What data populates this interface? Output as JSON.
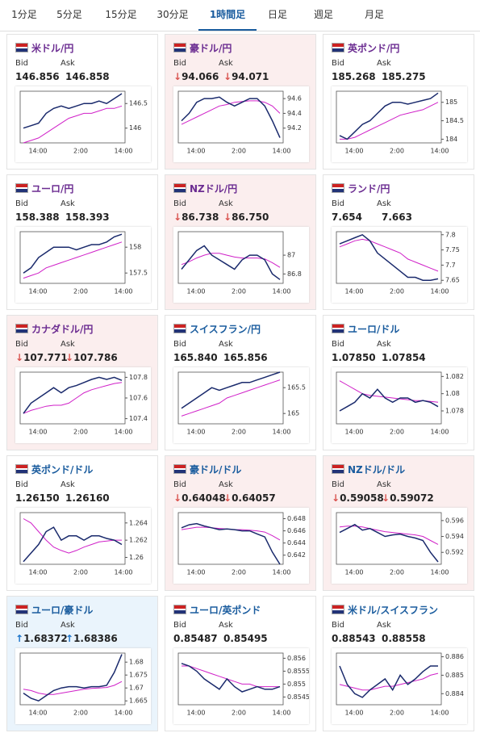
{
  "tabs": [
    "1分足",
    "5分足",
    "15分足",
    "30分足",
    "1時間足",
    "日足",
    "週足",
    "月足"
  ],
  "active_tab": 4,
  "bid_label": "Bid",
  "ask_label": "Ask",
  "x_labels": [
    "14:00",
    "2:00",
    "14:00"
  ],
  "panels": [
    {
      "title": "米ドル/円",
      "title_color": "#6b2c91",
      "bid": "146.856",
      "ask": "146.858",
      "chart": {
        "ylim": [
          145.7,
          146.75
        ],
        "yticks": [
          146,
          146.5
        ],
        "close": [
          146.0,
          146.05,
          146.1,
          146.3,
          146.4,
          146.45,
          146.4,
          146.45,
          146.5,
          146.5,
          146.55,
          146.5,
          146.6,
          146.7
        ],
        "ma": [
          145.7,
          145.75,
          145.8,
          145.9,
          146.0,
          146.1,
          146.2,
          146.25,
          146.3,
          146.3,
          146.35,
          146.4,
          146.4,
          146.45
        ]
      }
    },
    {
      "title": "豪ドル/円",
      "title_color": "#6b2c91",
      "state": "down",
      "trend_symbol": "↓",
      "bid": "94.066",
      "ask": "94.071",
      "chart": {
        "ylim": [
          94.0,
          94.7
        ],
        "yticks": [
          94.2,
          94.4,
          94.6
        ],
        "close": [
          94.3,
          94.4,
          94.55,
          94.6,
          94.6,
          94.62,
          94.55,
          94.5,
          94.55,
          94.6,
          94.6,
          94.5,
          94.3,
          94.07
        ],
        "ma": [
          94.25,
          94.3,
          94.35,
          94.4,
          94.45,
          94.5,
          94.52,
          94.55,
          94.56,
          94.57,
          94.57,
          94.55,
          94.5,
          94.4
        ]
      }
    },
    {
      "title": "英ポンド/円",
      "title_color": "#6b2c91",
      "bid": "185.268",
      "ask": "185.275",
      "chart": {
        "ylim": [
          183.9,
          185.3
        ],
        "yticks": [
          184,
          184.5,
          185
        ],
        "close": [
          184.1,
          184.0,
          184.2,
          184.4,
          184.5,
          184.7,
          184.9,
          185.0,
          185.0,
          184.95,
          185.0,
          185.05,
          185.1,
          185.25
        ],
        "ma": [
          184.0,
          184.0,
          184.05,
          184.15,
          184.25,
          184.35,
          184.45,
          184.55,
          184.65,
          184.7,
          184.75,
          184.8,
          184.9,
          185.0
        ]
      }
    },
    {
      "title": "ユーロ/円",
      "title_color": "#6b2c91",
      "bid": "158.388",
      "ask": "158.393",
      "chart": {
        "ylim": [
          157.3,
          158.3
        ],
        "yticks": [
          157.5,
          158
        ],
        "close": [
          157.5,
          157.6,
          157.8,
          157.9,
          158.0,
          158.0,
          158.0,
          157.95,
          158.0,
          158.05,
          158.05,
          158.1,
          158.2,
          158.25
        ],
        "ma": [
          157.4,
          157.45,
          157.5,
          157.6,
          157.65,
          157.7,
          157.75,
          157.8,
          157.85,
          157.9,
          157.95,
          158.0,
          158.05,
          158.1
        ]
      }
    },
    {
      "title": "NZドル/円",
      "title_color": "#6b2c91",
      "state": "down",
      "trend_symbol": "↓",
      "bid": "86.738",
      "ask": "86.750",
      "chart": {
        "ylim": [
          86.7,
          87.25
        ],
        "yticks": [
          86.8,
          87
        ],
        "close": [
          86.85,
          86.95,
          87.05,
          87.1,
          87.0,
          86.95,
          86.9,
          86.85,
          86.95,
          87.0,
          87.0,
          86.95,
          86.8,
          86.74
        ],
        "ma": [
          86.9,
          86.93,
          86.97,
          87.0,
          87.02,
          87.02,
          87.0,
          86.98,
          86.97,
          86.97,
          86.97,
          86.96,
          86.92,
          86.87
        ]
      }
    },
    {
      "title": "ランド/円",
      "title_color": "#6b2c91",
      "bid": "7.654",
      "ask": "7.663",
      "chart": {
        "ylim": [
          7.64,
          7.81
        ],
        "yticks": [
          7.65,
          7.7,
          7.75,
          7.8
        ],
        "close": [
          7.77,
          7.78,
          7.79,
          7.8,
          7.78,
          7.74,
          7.72,
          7.7,
          7.68,
          7.66,
          7.66,
          7.65,
          7.65,
          7.655
        ],
        "ma": [
          7.76,
          7.77,
          7.78,
          7.785,
          7.78,
          7.77,
          7.76,
          7.75,
          7.74,
          7.72,
          7.71,
          7.7,
          7.69,
          7.68
        ]
      }
    },
    {
      "title": "カナダドル/円",
      "title_color": "#6b2c91",
      "state": "down",
      "trend_symbol": "↓",
      "bid": "107.771",
      "ask": "107.786",
      "chart": {
        "ylim": [
          107.35,
          107.85
        ],
        "yticks": [
          107.4,
          107.6,
          107.8
        ],
        "close": [
          107.45,
          107.55,
          107.6,
          107.65,
          107.7,
          107.65,
          107.7,
          107.72,
          107.75,
          107.78,
          107.8,
          107.78,
          107.8,
          107.77
        ],
        "ma": [
          107.45,
          107.48,
          107.5,
          107.52,
          107.53,
          107.53,
          107.55,
          107.6,
          107.65,
          107.68,
          107.7,
          107.72,
          107.74,
          107.75
        ]
      }
    },
    {
      "title": "スイスフラン/円",
      "title_color": "#1a5c9e",
      "bid": "165.840",
      "ask": "165.856",
      "chart": {
        "ylim": [
          164.8,
          165.8
        ],
        "yticks": [
          165,
          165.5
        ],
        "close": [
          165.1,
          165.2,
          165.3,
          165.4,
          165.5,
          165.45,
          165.5,
          165.55,
          165.6,
          165.6,
          165.65,
          165.7,
          165.75,
          165.8
        ],
        "ma": [
          164.95,
          165.0,
          165.05,
          165.1,
          165.15,
          165.2,
          165.3,
          165.35,
          165.4,
          165.45,
          165.5,
          165.55,
          165.6,
          165.65
        ]
      }
    },
    {
      "title": "ユーロ/ドル",
      "title_color": "#1a5c9e",
      "bid": "1.07850",
      "ask": "1.07854",
      "chart": {
        "ylim": [
          1.0765,
          1.0825
        ],
        "yticks": [
          1.078,
          1.08,
          1.082
        ],
        "close": [
          1.078,
          1.0785,
          1.079,
          1.08,
          1.0795,
          1.0805,
          1.0795,
          1.079,
          1.0795,
          1.0795,
          1.079,
          1.0792,
          1.079,
          1.0785
        ],
        "ma": [
          1.0815,
          1.081,
          1.0805,
          1.08,
          1.0798,
          1.0797,
          1.0796,
          1.0795,
          1.0794,
          1.0793,
          1.0792,
          1.0792,
          1.0791,
          1.079
        ]
      }
    },
    {
      "title": "英ポンド/ドル",
      "title_color": "#1a5c9e",
      "bid": "1.26150",
      "ask": "1.26160",
      "chart": {
        "ylim": [
          1.2592,
          1.2652
        ],
        "yticks": [
          1.26,
          1.262,
          1.264
        ],
        "close": [
          1.2595,
          1.2605,
          1.2615,
          1.263,
          1.2635,
          1.262,
          1.2625,
          1.2625,
          1.262,
          1.2625,
          1.2625,
          1.2622,
          1.262,
          1.2615
        ],
        "ma": [
          1.2645,
          1.264,
          1.263,
          1.262,
          1.2612,
          1.2608,
          1.2605,
          1.2608,
          1.2612,
          1.2615,
          1.2618,
          1.2619,
          1.262,
          1.262
        ]
      }
    },
    {
      "title": "豪ドル/ドル",
      "title_color": "#1a5c9e",
      "state": "down",
      "trend_symbol": "↓",
      "bid": "0.64048",
      "ask": "0.64057",
      "chart": {
        "ylim": [
          0.6405,
          0.649
        ],
        "yticks": [
          0.642,
          0.644,
          0.646,
          0.648
        ],
        "close": [
          0.6465,
          0.647,
          0.6472,
          0.6468,
          0.6465,
          0.6462,
          0.6463,
          0.6462,
          0.646,
          0.646,
          0.6455,
          0.645,
          0.6425,
          0.6405
        ],
        "ma": [
          0.6462,
          0.6464,
          0.6466,
          0.6466,
          0.6465,
          0.6464,
          0.6463,
          0.6462,
          0.6462,
          0.6461,
          0.646,
          0.6458,
          0.6452,
          0.6445
        ]
      }
    },
    {
      "title": "NZドル/ドル",
      "title_color": "#1a5c9e",
      "state": "down",
      "trend_symbol": "↓",
      "bid": "0.59058",
      "ask": "0.59072",
      "chart": {
        "ylim": [
          0.5905,
          0.597
        ],
        "yticks": [
          0.592,
          0.594,
          0.596
        ],
        "close": [
          0.5945,
          0.595,
          0.5955,
          0.5948,
          0.595,
          0.5945,
          0.594,
          0.5942,
          0.5943,
          0.594,
          0.5938,
          0.5935,
          0.592,
          0.5908
        ],
        "ma": [
          0.5952,
          0.5953,
          0.5953,
          0.5952,
          0.595,
          0.5948,
          0.5946,
          0.5945,
          0.5944,
          0.5943,
          0.5942,
          0.594,
          0.5935,
          0.593
        ]
      }
    },
    {
      "title": "ユーロ/豪ドル",
      "title_color": "#1a5c9e",
      "state": "up",
      "trend_symbol": "↑",
      "bid": "1.68372",
      "ask": "1.68386",
      "chart": {
        "ylim": [
          1.6635,
          1.6835
        ],
        "yticks": [
          1.665,
          1.67,
          1.675,
          1.68
        ],
        "close": [
          1.668,
          1.666,
          1.665,
          1.667,
          1.669,
          1.67,
          1.6705,
          1.6705,
          1.67,
          1.6705,
          1.6705,
          1.671,
          1.676,
          1.683
        ],
        "ma": [
          1.6695,
          1.669,
          1.668,
          1.6675,
          1.6675,
          1.668,
          1.6685,
          1.669,
          1.6695,
          1.6698,
          1.67,
          1.6702,
          1.671,
          1.6725
        ]
      }
    },
    {
      "title": "ユーロ/英ポンド",
      "title_color": "#1a5c9e",
      "bid": "0.85487",
      "ask": "0.85495",
      "chart": {
        "ylim": [
          0.8542,
          0.8562
        ],
        "yticks": [
          0.8545,
          0.855,
          0.8555,
          0.856
        ],
        "close": [
          0.8558,
          0.8557,
          0.8555,
          0.8552,
          0.855,
          0.8548,
          0.8552,
          0.8549,
          0.8547,
          0.8548,
          0.8549,
          0.8548,
          0.8548,
          0.8549
        ],
        "ma": [
          0.8557,
          0.8557,
          0.8556,
          0.8555,
          0.8554,
          0.8553,
          0.8552,
          0.8551,
          0.855,
          0.855,
          0.8549,
          0.8549,
          0.8549,
          0.8549
        ]
      }
    },
    {
      "title": "米ドル/スイスフラン",
      "title_color": "#1a5c9e",
      "bid": "0.88543",
      "ask": "0.88558",
      "chart": {
        "ylim": [
          0.8834,
          0.8862
        ],
        "yticks": [
          0.884,
          0.885,
          0.886
        ],
        "close": [
          0.8855,
          0.8845,
          0.884,
          0.8838,
          0.8842,
          0.8845,
          0.8848,
          0.8842,
          0.885,
          0.8845,
          0.8848,
          0.8852,
          0.8855,
          0.8855
        ],
        "ma": [
          0.8845,
          0.8844,
          0.8843,
          0.8842,
          0.8842,
          0.8843,
          0.8844,
          0.8844,
          0.8845,
          0.8846,
          0.8847,
          0.8848,
          0.885,
          0.8851
        ]
      }
    }
  ]
}
